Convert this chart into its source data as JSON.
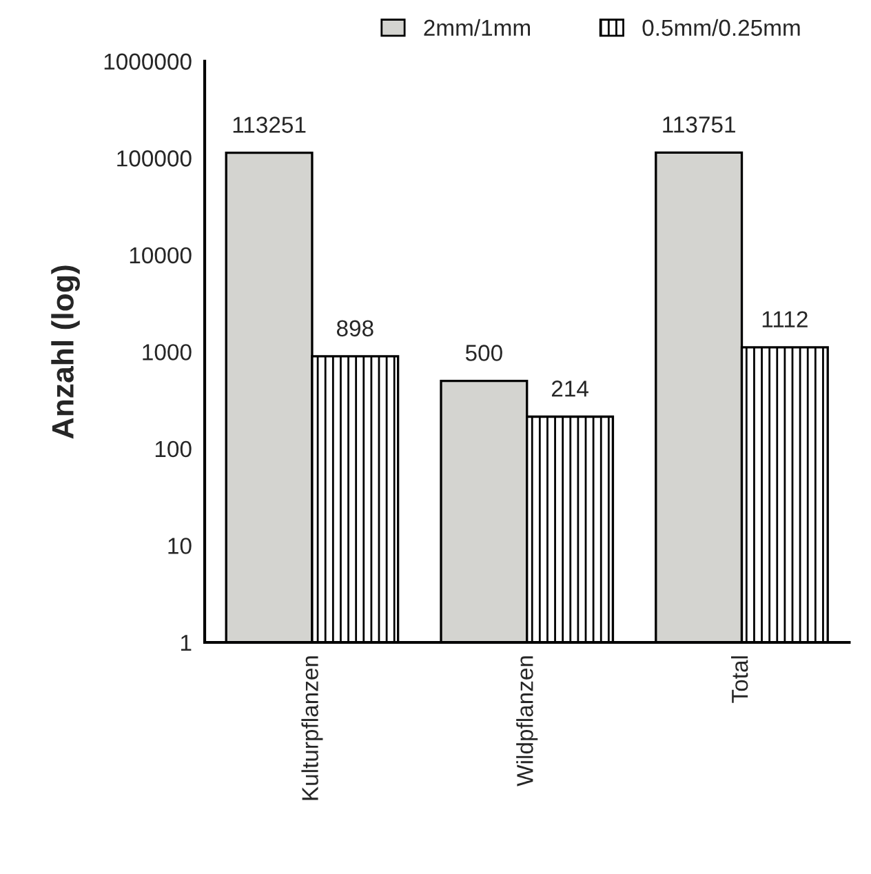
{
  "chart_data": {
    "type": "bar",
    "ylabel": "Anzahl (log)",
    "categories": [
      "Kulturpflanzen",
      "Wildpflanzen",
      "Total"
    ],
    "series": [
      {
        "name": "2mm/1mm",
        "color": "#d4d4d0",
        "values": [
          113251,
          500,
          113751
        ]
      },
      {
        "name": "0.5mm/0.25mm",
        "color": "#000000",
        "values": [
          898,
          214,
          1112
        ]
      }
    ],
    "log": true,
    "ylim": [
      1,
      1000000
    ],
    "yticks": [
      1,
      10,
      100,
      1000,
      10000,
      100000,
      1000000
    ],
    "data_labels": true,
    "legend": "top",
    "grid": false
  }
}
